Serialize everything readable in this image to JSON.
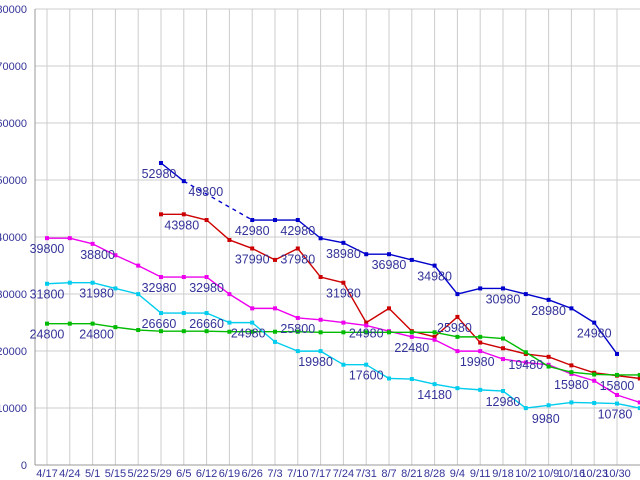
{
  "chart_data": {
    "type": "line",
    "title": "",
    "xlabel": "",
    "ylabel": "",
    "ylim": [
      0,
      80000
    ],
    "y_ticks": [
      0,
      10000,
      20000,
      30000,
      40000,
      50000,
      60000,
      70000,
      80000
    ],
    "x_labels": [
      "4/17",
      "4/24",
      "5/1",
      "5/15",
      "5/22",
      "5/29",
      "6/5",
      "6/12",
      "6/19",
      "6/26",
      "7/3",
      "7/10",
      "7/17",
      "7/24",
      "7/31",
      "8/7",
      "8/21",
      "8/28",
      "9/4",
      "9/11",
      "9/18",
      "10/2",
      "10/9",
      "10/16",
      "10/23",
      "10/30",
      ""
    ],
    "grid": true,
    "legend": "none",
    "colors": {
      "text": "#333399",
      "grid": "#cccccc",
      "axis": "#999999",
      "background": "#ffffff",
      "series_blue": "#0000cc",
      "series_red": "#cc0000",
      "series_magenta": "#ee00ee",
      "series_green": "#00bb00",
      "series_cyan": "#00ccee"
    },
    "series": [
      {
        "name": "series-blue",
        "color": "#0000cc",
        "values": [
          null,
          null,
          null,
          null,
          null,
          52980,
          49800,
          null,
          null,
          42980,
          42980,
          42980,
          39780,
          38980,
          36980,
          36980,
          35980,
          34980,
          29980,
          30980,
          30980,
          29980,
          28980,
          27480,
          24980,
          19480,
          null
        ],
        "dashed_between": [
          6,
          9
        ]
      },
      {
        "name": "series-red",
        "color": "#cc0000",
        "values": [
          null,
          null,
          null,
          null,
          null,
          43980,
          43980,
          42980,
          39480,
          37990,
          35980,
          37980,
          32980,
          31980,
          24980,
          27480,
          23480,
          22480,
          25980,
          21480,
          20480,
          19480,
          18980,
          17480,
          16180,
          15680,
          15180
        ],
        "dashed_between": null
      },
      {
        "name": "series-magenta",
        "color": "#ee00ee",
        "values": [
          39800,
          39800,
          38800,
          36800,
          34980,
          32980,
          32980,
          32980,
          29980,
          27480,
          27480,
          25800,
          25480,
          24980,
          24480,
          23480,
          22480,
          21980,
          19980,
          19980,
          18580,
          17980,
          17580,
          15980,
          14780,
          12280,
          10980
        ],
        "dashed_between": null
      },
      {
        "name": "series-green",
        "color": "#00bb00",
        "values": [
          24800,
          24800,
          24800,
          24180,
          23680,
          23480,
          23480,
          23480,
          23380,
          23380,
          23380,
          23380,
          23280,
          23280,
          23280,
          23280,
          23280,
          23280,
          22480,
          22480,
          22180,
          19780,
          17280,
          16280,
          15880,
          15800,
          15800
        ],
        "dashed_between": null
      },
      {
        "name": "series-cyan",
        "color": "#00ccee",
        "values": [
          31800,
          31980,
          31980,
          30980,
          29980,
          26660,
          26660,
          26660,
          24980,
          24980,
          21600,
          19980,
          19980,
          17600,
          17600,
          15180,
          15080,
          14180,
          13480,
          13180,
          12980,
          9980,
          10480,
          10980,
          10880,
          10780,
          9980
        ],
        "dashed_between": null
      }
    ],
    "point_labels": [
      {
        "series": 0,
        "index": 5,
        "text": "52980",
        "dx": -2
      },
      {
        "series": 0,
        "index": 6,
        "text": "49800",
        "dx": 22
      },
      {
        "series": 0,
        "index": 9,
        "text": "42980",
        "dx": 0
      },
      {
        "series": 0,
        "index": 11,
        "text": "42980",
        "dx": 0
      },
      {
        "series": 0,
        "index": 13,
        "text": "38980",
        "dx": 0
      },
      {
        "series": 0,
        "index": 15,
        "text": "36980",
        "dx": 0
      },
      {
        "series": 0,
        "index": 17,
        "text": "34980",
        "dx": 0
      },
      {
        "series": 0,
        "index": 20,
        "text": "30980",
        "dx": 0
      },
      {
        "series": 0,
        "index": 22,
        "text": "28980",
        "dx": 0
      },
      {
        "series": 0,
        "index": 24,
        "text": "24980",
        "dx": 0
      },
      {
        "series": 1,
        "index": 6,
        "text": "43980",
        "dx": -2
      },
      {
        "series": 1,
        "index": 9,
        "text": "37990",
        "dx": 0
      },
      {
        "series": 1,
        "index": 11,
        "text": "37980",
        "dx": 0
      },
      {
        "series": 1,
        "index": 13,
        "text": "31980",
        "dx": 0
      },
      {
        "series": 1,
        "index": 14,
        "text": "24980",
        "dx": 0
      },
      {
        "series": 1,
        "index": 18,
        "text": "25980",
        "dx": -3
      },
      {
        "series": 1,
        "index": 21,
        "text": "19480",
        "dx": 0
      },
      {
        "series": 2,
        "index": 0,
        "text": "39800",
        "dx": 0
      },
      {
        "series": 2,
        "index": 2,
        "text": "38800",
        "dx": 5
      },
      {
        "series": 2,
        "index": 5,
        "text": "32980",
        "dx": -2
      },
      {
        "series": 2,
        "index": 7,
        "text": "32980",
        "dx": 0
      },
      {
        "series": 2,
        "index": 11,
        "text": "25800",
        "dx": 0
      },
      {
        "series": 2,
        "index": 16,
        "text": "22480",
        "dx": 0
      },
      {
        "series": 2,
        "index": 19,
        "text": "19980",
        "dx": -3
      },
      {
        "series": 2,
        "index": 23,
        "text": "15980",
        "dx": 0
      },
      {
        "series": 3,
        "index": 0,
        "text": "24800",
        "dx": 0
      },
      {
        "series": 3,
        "index": 2,
        "text": "24800",
        "dx": 4
      },
      {
        "series": 3,
        "index": 25,
        "text": "15800",
        "dx": 0
      },
      {
        "series": 4,
        "index": 0,
        "text": "31800",
        "dx": 0
      },
      {
        "series": 4,
        "index": 2,
        "text": "31980",
        "dx": 4
      },
      {
        "series": 4,
        "index": 5,
        "text": "26660",
        "dx": -2
      },
      {
        "series": 4,
        "index": 7,
        "text": "26660",
        "dx": 0
      },
      {
        "series": 4,
        "index": 9,
        "text": "24980",
        "dx": -4
      },
      {
        "series": 4,
        "index": 12,
        "text": "19980",
        "dx": -5
      },
      {
        "series": 4,
        "index": 14,
        "text": "17600",
        "dx": 0
      },
      {
        "series": 4,
        "index": 17,
        "text": "14180",
        "dx": 0
      },
      {
        "series": 4,
        "index": 20,
        "text": "12980",
        "dx": 0
      },
      {
        "series": 4,
        "index": 21,
        "text": "9980",
        "dx": 20
      },
      {
        "series": 4,
        "index": 25,
        "text": "10780",
        "dx": -2
      }
    ]
  }
}
